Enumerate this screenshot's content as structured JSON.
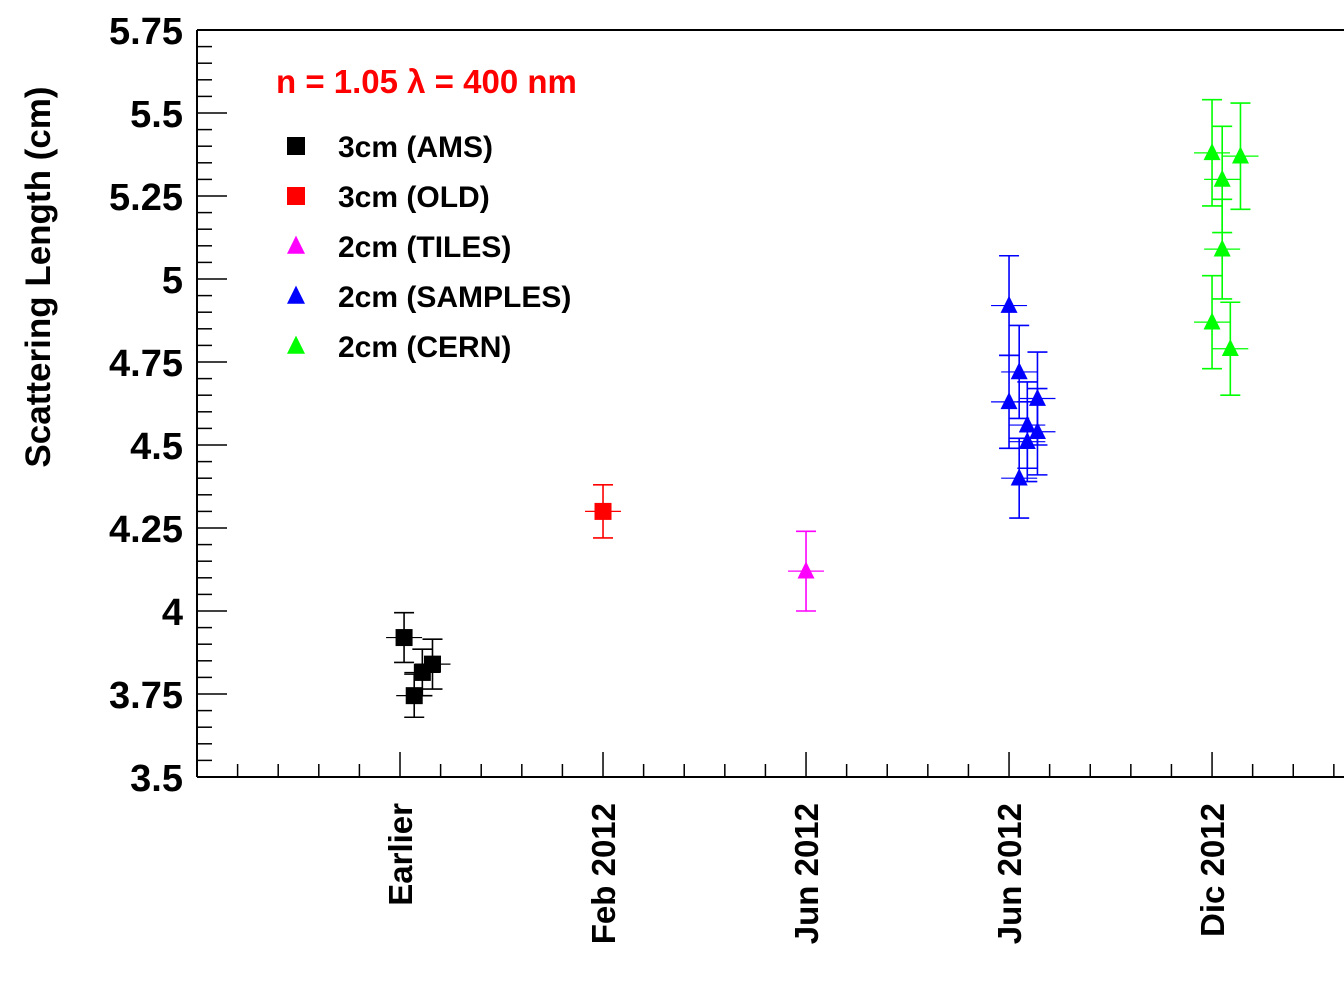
{
  "chart_data": {
    "type": "scatter",
    "ylabel": "Scattering Length (cm)",
    "xlabel": "",
    "ylim": [
      3.5,
      5.75
    ],
    "yticks": [
      3.5,
      3.75,
      4,
      4.25,
      4.5,
      4.75,
      5,
      5.25,
      5.5,
      5.75
    ],
    "ytick_labels": [
      "3.5",
      "3.75",
      "4",
      "4.25",
      "4.5",
      "4.75",
      "5",
      "5.25",
      "5.5",
      "5.75"
    ],
    "xlim": [
      0,
      5.65
    ],
    "categories": [
      "Earlier",
      "Feb 2012",
      "Jun 2012",
      "Jun 2012",
      "Dic 2012"
    ],
    "annotation": {
      "text": "n = 1.05   λ = 400 nm",
      "color": "#ff0000"
    },
    "legend_position": "top-left",
    "grid": false,
    "series": [
      {
        "name": "3cm (AMS)",
        "marker": "square",
        "color": "#000000",
        "points": [
          {
            "x": 1.02,
            "y": 3.92,
            "err": 0.075
          },
          {
            "x": 1.07,
            "y": 3.745,
            "err": 0.065
          },
          {
            "x": 1.11,
            "y": 3.815,
            "err": 0.07
          },
          {
            "x": 1.16,
            "y": 3.84,
            "err": 0.075
          }
        ]
      },
      {
        "name": "3cm (OLD)",
        "marker": "square",
        "color": "#ff0000",
        "points": [
          {
            "x": 2.0,
            "y": 4.3,
            "err": 0.08
          }
        ]
      },
      {
        "name": "2cm (TILES)",
        "marker": "triangle",
        "color": "#ff00ff",
        "points": [
          {
            "x": 3.0,
            "y": 4.12,
            "err": 0.12
          }
        ]
      },
      {
        "name": "2cm (SAMPLES)",
        "marker": "triangle",
        "color": "#0000ff",
        "points": [
          {
            "x": 4.0,
            "y": 4.92,
            "err": 0.15
          },
          {
            "x": 4.0,
            "y": 4.63,
            "err": 0.14
          },
          {
            "x": 4.05,
            "y": 4.72,
            "err": 0.14
          },
          {
            "x": 4.05,
            "y": 4.4,
            "err": 0.12
          },
          {
            "x": 4.09,
            "y": 4.56,
            "err": 0.13
          },
          {
            "x": 4.09,
            "y": 4.51,
            "err": 0.12
          },
          {
            "x": 4.14,
            "y": 4.64,
            "err": 0.14
          },
          {
            "x": 4.14,
            "y": 4.54,
            "err": 0.13
          }
        ]
      },
      {
        "name": "2cm (CERN)",
        "marker": "triangle",
        "color": "#00ff00",
        "points": [
          {
            "x": 5.0,
            "y": 5.38,
            "err": 0.16
          },
          {
            "x": 5.0,
            "y": 4.87,
            "err": 0.14
          },
          {
            "x": 5.05,
            "y": 5.3,
            "err": 0.16
          },
          {
            "x": 5.05,
            "y": 5.09,
            "err": 0.15
          },
          {
            "x": 5.09,
            "y": 4.79,
            "err": 0.14
          },
          {
            "x": 5.14,
            "y": 5.37,
            "err": 0.16
          }
        ]
      }
    ]
  }
}
